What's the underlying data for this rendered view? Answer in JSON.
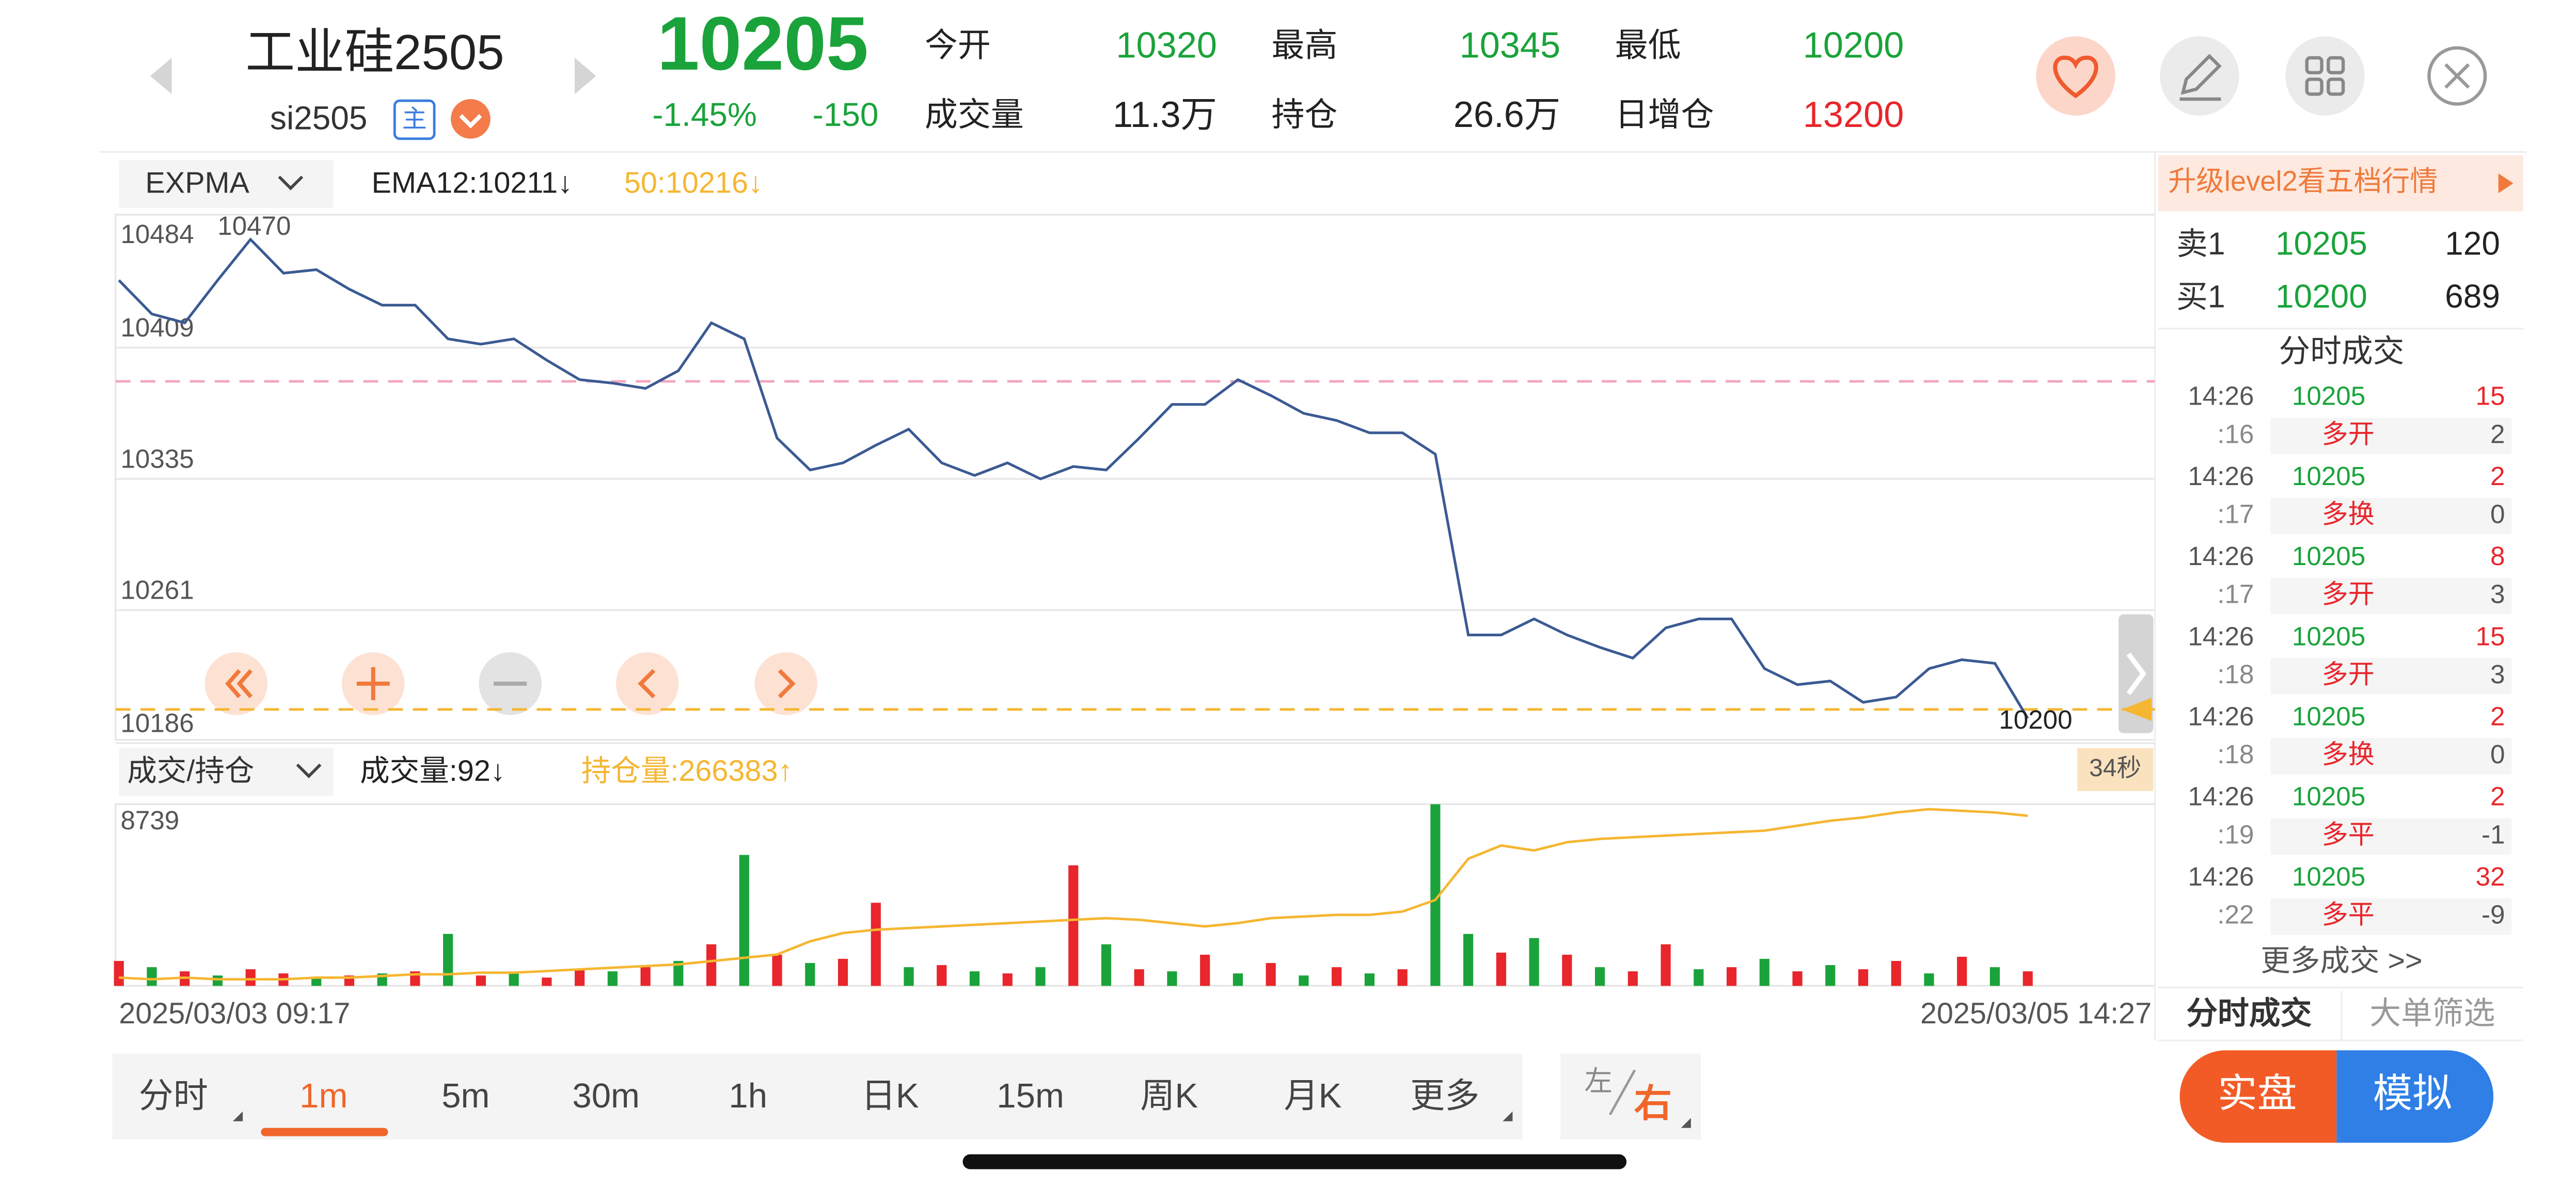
{
  "header": {
    "name": "工业硅2505",
    "code": "si2505",
    "tag": "主",
    "price": "10205",
    "change_pct": "-1.45%",
    "change": "-150",
    "stats": [
      [
        "今开",
        "10320"
      ],
      [
        "最高",
        "10345"
      ],
      [
        "最低",
        "10200"
      ],
      [
        "成交量",
        "11.3万"
      ],
      [
        "持仓",
        "26.6万"
      ],
      [
        "日增仓",
        "13200"
      ]
    ]
  },
  "indicator_bar": {
    "selector": "EXPMA",
    "ema12": "EMA12:10211↓",
    "ema50": "50:10216↓"
  },
  "volume_bar": {
    "selector": "成交/持仓",
    "volume": "成交量:92↓",
    "open_interest": "持仓量:266383↑"
  },
  "timer": "34秒",
  "chart_data": [
    {
      "type": "line",
      "color": "#3b5a93",
      "ylim": [
        10186,
        10484
      ],
      "yticks": [
        10484,
        10409,
        10335,
        10261,
        10186
      ],
      "grid": true,
      "reference_lines": [
        {
          "value": 10390,
          "color": "#f2a3bd"
        },
        {
          "value": 10205,
          "color": "#f5b631"
        }
      ],
      "values": [
        10447,
        10428,
        10423,
        10447,
        10470,
        10451,
        10453,
        10442,
        10433,
        10433,
        10414,
        10411,
        10414,
        10402,
        10391,
        10389,
        10386,
        10396,
        10423,
        10414,
        10358,
        10340,
        10344,
        10354,
        10363,
        10344,
        10337,
        10344,
        10335,
        10342,
        10340,
        10358,
        10377,
        10377,
        10391,
        10382,
        10372,
        10368,
        10361,
        10361,
        10349,
        10247,
        10247,
        10256,
        10247,
        10240,
        10234,
        10251,
        10256,
        10256,
        10228,
        10219,
        10221,
        10209,
        10212,
        10228,
        10233,
        10231,
        10200
      ]
    },
    {
      "type": "bar",
      "ylim": [
        0,
        8739
      ],
      "yticks": [
        8739
      ],
      "y2lim": [
        250000,
        267500
      ],
      "categories": [
        "2025/03/03 09:17",
        null,
        null,
        null,
        null,
        null,
        null,
        null,
        null,
        null,
        null,
        null,
        null,
        null,
        null,
        null,
        null,
        null,
        null,
        null,
        null,
        null,
        null,
        null,
        null,
        null,
        null,
        null,
        null,
        null,
        null,
        null,
        null,
        null,
        null,
        null,
        null,
        null,
        null,
        null,
        null,
        null,
        null,
        null,
        null,
        null,
        null,
        null,
        null,
        null,
        null,
        null,
        null,
        null,
        null,
        null,
        null,
        null,
        "2025/03/05 14:27"
      ],
      "series": [
        {
          "values": [
            1200,
            900,
            700,
            500,
            800,
            600,
            400,
            500,
            600,
            700,
            2500,
            500,
            600,
            400,
            800,
            700,
            900,
            1200,
            2000,
            6300,
            1500,
            1100,
            1300,
            4000,
            900,
            1000,
            700,
            600,
            900,
            5800,
            2000,
            800,
            700,
            1500,
            600,
            1100,
            500,
            900,
            600,
            800,
            8739,
            2500,
            1600,
            2300,
            1500,
            900,
            700,
            2000,
            800,
            900,
            1300,
            700,
            1000,
            800,
            1200,
            600,
            1400,
            900,
            700
          ],
          "colors": [
            "#e8262b",
            "#1aa33a",
            "#e8262b",
            "#1aa33a",
            "#e8262b",
            "#e8262b",
            "#1aa33a",
            "#e8262b",
            "#1aa33a",
            "#e8262b",
            "#1aa33a",
            "#e8262b",
            "#1aa33a",
            "#e8262b",
            "#e8262b",
            "#1aa33a",
            "#e8262b",
            "#1aa33a",
            "#e8262b",
            "#1aa33a",
            "#e8262b",
            "#1aa33a",
            "#e8262b",
            "#e8262b",
            "#1aa33a",
            "#e8262b",
            "#1aa33a",
            "#e8262b",
            "#1aa33a",
            "#e8262b",
            "#1aa33a",
            "#e8262b",
            "#1aa33a",
            "#e8262b",
            "#1aa33a",
            "#e8262b",
            "#1aa33a",
            "#e8262b",
            "#1aa33a",
            "#e8262b",
            "#1aa33a",
            "#1aa33a",
            "#e8262b",
            "#1aa33a",
            "#e8262b",
            "#1aa33a",
            "#e8262b",
            "#e8262b",
            "#1aa33a",
            "#e8262b",
            "#1aa33a",
            "#e8262b",
            "#1aa33a",
            "#e8262b",
            "#e8262b",
            "#1aa33a",
            "#e8262b",
            "#1aa33a",
            "#e8262b"
          ]
        },
        {
          "type": "line",
          "axis": "y2",
          "color": "#f5b631",
          "values": [
            250800,
            250640,
            250800,
            250640,
            250640,
            250640,
            250800,
            250800,
            250950,
            251110,
            251110,
            251270,
            251270,
            251430,
            251590,
            251750,
            251910,
            252070,
            252390,
            252700,
            253020,
            254300,
            255090,
            255410,
            255570,
            255730,
            255890,
            256050,
            256200,
            256360,
            256520,
            256360,
            256050,
            255730,
            256050,
            256520,
            256680,
            256840,
            256840,
            257160,
            258270,
            262250,
            263520,
            263050,
            263840,
            264160,
            264320,
            264480,
            264640,
            264800,
            264960,
            265430,
            265910,
            266230,
            266710,
            267020,
            266860,
            266710,
            266383
          ]
        }
      ]
    }
  ],
  "side": {
    "promo": "升级level2看五档行情",
    "book": [
      [
        "卖1",
        "10205",
        "120"
      ],
      [
        "买1",
        "10200",
        "689"
      ]
    ],
    "trades_title": "分时成交",
    "trades": [
      [
        "14:26",
        ":16",
        "10205",
        "15",
        "多开",
        "2"
      ],
      [
        "14:26",
        ":17",
        "10205",
        "2",
        "多换",
        "0"
      ],
      [
        "14:26",
        ":17",
        "10205",
        "8",
        "多开",
        "3"
      ],
      [
        "14:26",
        ":18",
        "10205",
        "15",
        "多开",
        "3"
      ],
      [
        "14:26",
        ":18",
        "10205",
        "2",
        "多换",
        "0"
      ],
      [
        "14:26",
        ":19",
        "10205",
        "2",
        "多平",
        "-1"
      ],
      [
        "14:26",
        ":22",
        "10205",
        "32",
        "多平",
        "-9"
      ]
    ],
    "more": "更多成交 >>",
    "tabs": [
      "分时成交",
      "大单筛选"
    ]
  },
  "footer": {
    "periods": [
      "分时",
      "1m",
      "5m",
      "30m",
      "1h",
      "日K",
      "15m",
      "周K",
      "月K",
      "更多"
    ],
    "active": 1,
    "side_toggle": [
      "左",
      "右"
    ],
    "buttons": [
      "实盘",
      "模拟"
    ]
  }
}
